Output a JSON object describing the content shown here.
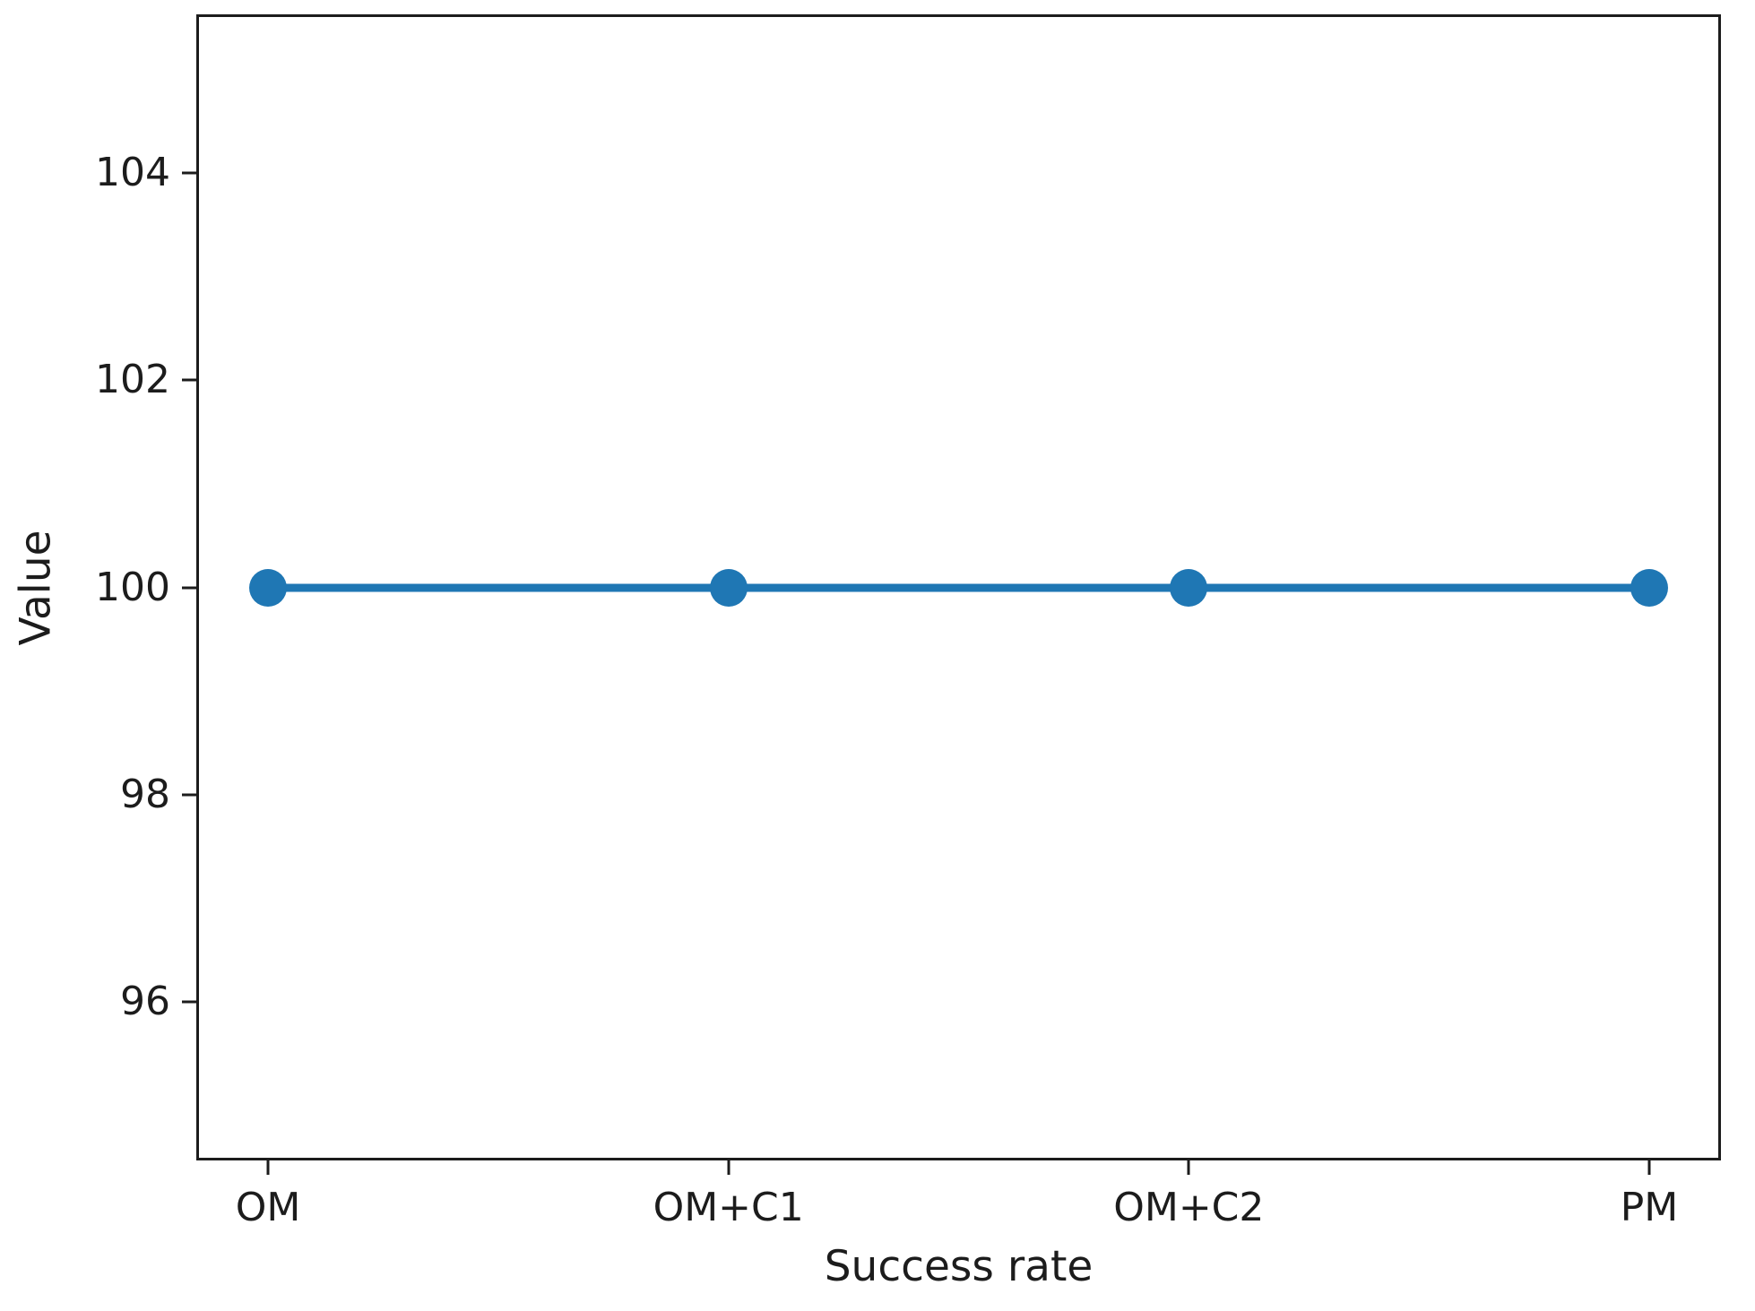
{
  "chart_data": {
    "type": "line",
    "categories": [
      "OM",
      "OM+C1",
      "OM+C2",
      "PM"
    ],
    "series": [
      {
        "name": "Value",
        "values": [
          100,
          100,
          100,
          100
        ]
      }
    ],
    "title": "",
    "xlabel": "Success rate",
    "ylabel": "Value",
    "yticks_top_to_bottom": [
      "104",
      "102",
      "100",
      "98",
      "96"
    ],
    "ylim": [
      94.5,
      105.5
    ],
    "grid": false,
    "legend": "none",
    "line_color": "#1f77b4",
    "marker": "circle",
    "point_value_label": "100"
  }
}
